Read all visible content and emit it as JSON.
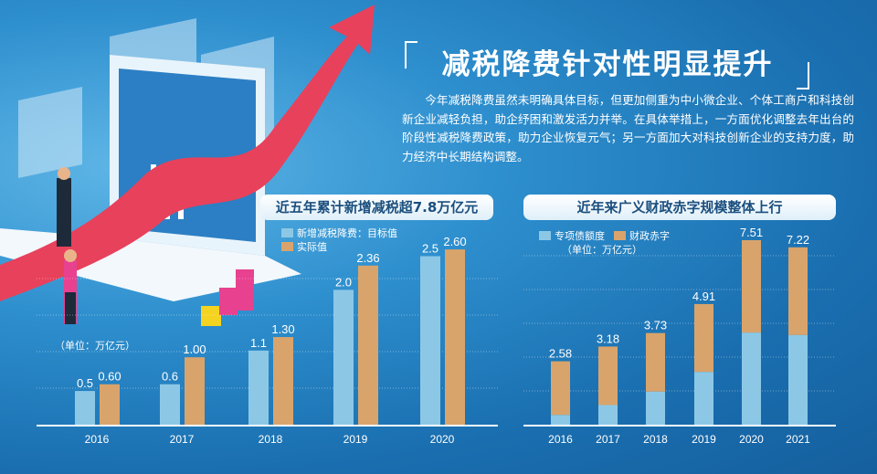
{
  "title": "减税降费针对性明显提升",
  "paragraph": "今年减税降费虽然未明确具体目标，但更加侧重为中小微企业、个体工商户和科技创新企业减轻负担，助企纾困和激发活力并举。在具体举措上，一方面优化调整去年出台的阶段性减税降费政策，助力企业恢复元气；另一方面加大对科技创新企业的支持力度，助力经济中长期结构调整。",
  "colors": {
    "blue": "#8cc8e6",
    "orange": "#d9a46b"
  },
  "chart_data": [
    {
      "type": "bar",
      "title": "近五年累计新增减税超7.8万亿元",
      "unit": "（单位：万亿元）",
      "categories": [
        "2016",
        "2017",
        "2018",
        "2019",
        "2020"
      ],
      "series": [
        {
          "name": "新增减税降费：目标值",
          "values": [
            0.5,
            0.6,
            1.1,
            2.0,
            2.5
          ],
          "labels": [
            "0.5",
            "0.6",
            "1.1",
            "2.0",
            "2.5"
          ]
        },
        {
          "name": "实际值",
          "values": [
            0.6,
            1.0,
            1.3,
            2.36,
            2.6
          ],
          "labels": [
            "0.60",
            "1.00",
            "1.30",
            "2.36",
            "2.60"
          ]
        }
      ],
      "ylim": [
        0,
        2.8
      ]
    },
    {
      "type": "bar",
      "stacked": true,
      "title": "近年来广义财政赤字规模整体上行",
      "unit": "（单位：万亿元）",
      "categories": [
        "2016",
        "2017",
        "2018",
        "2019",
        "2020",
        "2021"
      ],
      "series": [
        {
          "name": "专项债额度",
          "values": [
            0.4,
            0.8,
            1.35,
            2.15,
            3.75,
            3.65
          ]
        },
        {
          "name": "财政赤字",
          "values": [
            2.18,
            2.38,
            2.38,
            2.76,
            3.76,
            3.57
          ]
        }
      ],
      "totals": [
        "2.58",
        "3.18",
        "3.73",
        "4.91",
        "7.51",
        "7.22"
      ],
      "ylim": [
        0,
        8
      ]
    }
  ]
}
